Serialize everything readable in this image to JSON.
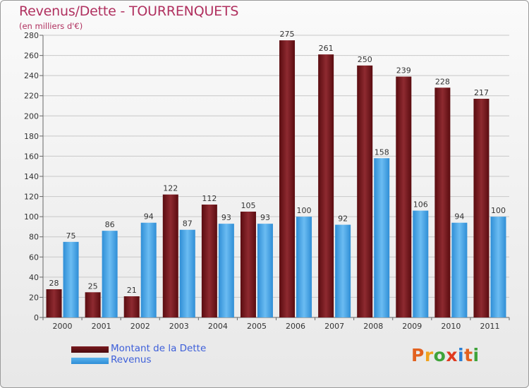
{
  "header": {
    "title": "Revenus/Dette - TOURRENQUETS",
    "subtitle": "(en milliers d'€)"
  },
  "chart_data": {
    "type": "bar",
    "title": "Revenus/Dette - TOURRENQUETS",
    "ylabel": "(en milliers d'€)",
    "xlabel": "",
    "ylim": [
      0,
      280
    ],
    "yticks": [
      0,
      20,
      40,
      60,
      80,
      100,
      120,
      140,
      160,
      180,
      200,
      220,
      240,
      260,
      280
    ],
    "grid": true,
    "categories": [
      "2000",
      "2001",
      "2002",
      "2003",
      "2004",
      "2005",
      "2006",
      "2007",
      "2008",
      "2009",
      "2010",
      "2011"
    ],
    "series": [
      {
        "name": "Montant de la Dette",
        "color": "#7a1a1f",
        "values": [
          28,
          25,
          21,
          122,
          112,
          105,
          275,
          261,
          250,
          239,
          228,
          217
        ]
      },
      {
        "name": "Revenus",
        "color": "#3b9fe0",
        "values": [
          75,
          86,
          94,
          87,
          93,
          93,
          100,
          92,
          158,
          106,
          94,
          100
        ]
      }
    ],
    "legend_position": "bottom-left"
  },
  "legend": {
    "items": [
      {
        "label": "Montant de la Dette",
        "color": "#7a1a1f"
      },
      {
        "label": "Revenus",
        "color": "#3b9fe0"
      }
    ]
  },
  "branding": {
    "logo_letters": [
      "P",
      "r",
      "o",
      "x",
      "i",
      "t",
      "i"
    ],
    "logo_colors": [
      "#e2611f",
      "#f0a21e",
      "#3fa33a",
      "#e03a1f",
      "#2b7fd4",
      "#e2611f",
      "#3fa33a"
    ]
  }
}
